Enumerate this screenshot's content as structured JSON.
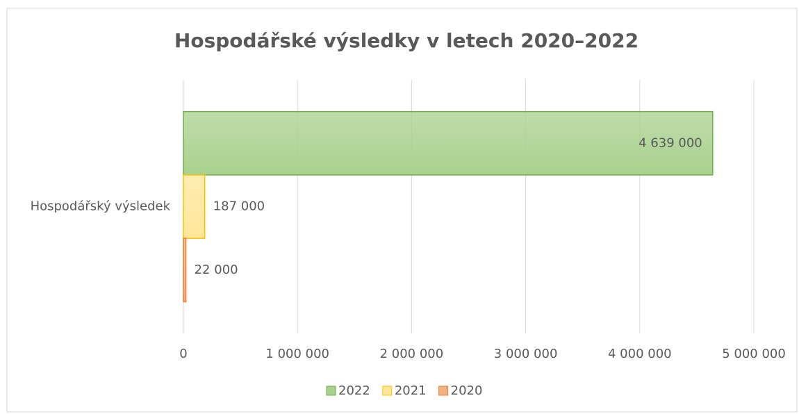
{
  "chart_data": {
    "type": "hbar",
    "title": "Hospodářské výsledky v letech 2020–2022",
    "categories": [
      "Hospodářský výsledek"
    ],
    "series": [
      {
        "name": "2022",
        "color": "#70ad47",
        "fill": "#a9d18e",
        "values": [
          4639000
        ],
        "value_labels": [
          "4 639 000"
        ]
      },
      {
        "name": "2021",
        "color": "#ffc000",
        "fill": "#ffe699",
        "values": [
          187000
        ],
        "value_labels": [
          "187 000"
        ]
      },
      {
        "name": "2020",
        "color": "#ed7d31",
        "fill": "#f4b183",
        "values": [
          22000
        ],
        "value_labels": [
          "22 000"
        ]
      }
    ],
    "xlim": [
      0,
      5000000
    ],
    "xticks": [
      0,
      {
        "value": 1000000,
        "label": "1 000 000"
      },
      {
        "value": 2000000,
        "label": "2 000 000"
      },
      {
        "value": 3000000,
        "label": "3 000 000"
      },
      {
        "value": 4000000,
        "label": "4 000 000"
      },
      {
        "value": 5000000,
        "label": "5 000 000"
      }
    ],
    "grid": true,
    "legend": "bottom"
  }
}
